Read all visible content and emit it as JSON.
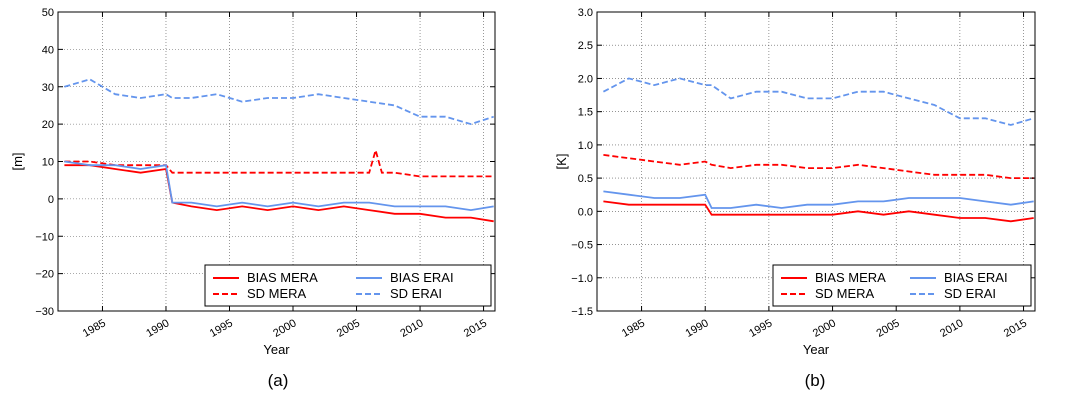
{
  "chart_data": [
    {
      "type": "line",
      "panel_label": "(a)",
      "xlabel": "Year",
      "ylabel": "[m]",
      "xlim": [
        1981.5,
        2015.9
      ],
      "ylim": [
        -30,
        50
      ],
      "yticks": [
        -30,
        -20,
        -10,
        0,
        10,
        20,
        30,
        40,
        50
      ],
      "xticks": [
        1985,
        1990,
        1995,
        2000,
        2005,
        2010,
        2015
      ],
      "grid": true,
      "legend_position": "bottom-right",
      "series": [
        {
          "name": "BIAS MERA",
          "color": "#ff0000",
          "style": "solid",
          "x": [
            1982,
            1984,
            1986,
            1988,
            1990,
            1990.5,
            1992,
            1994,
            1996,
            1998,
            2000,
            2002,
            2004,
            2006,
            2008,
            2010,
            2012,
            2014,
            2015.8
          ],
          "y": [
            9,
            9,
            8,
            7,
            8,
            -1,
            -2,
            -3,
            -2,
            -3,
            -2,
            -3,
            -2,
            -3,
            -4,
            -4,
            -5,
            -5,
            -6
          ]
        },
        {
          "name": "SD MERA",
          "color": "#ff0000",
          "style": "dashed",
          "x": [
            1982,
            1984,
            1986,
            1988,
            1990,
            1990.5,
            1992,
            1994,
            1996,
            1998,
            2000,
            2002,
            2004,
            2006,
            2006.5,
            2007,
            2008,
            2010,
            2012,
            2014,
            2015.8
          ],
          "y": [
            10,
            10,
            9,
            9,
            9,
            7,
            7,
            7,
            7,
            7,
            7,
            7,
            7,
            7,
            13,
            7,
            7,
            6,
            6,
            6,
            6
          ]
        },
        {
          "name": "BIAS ERAI",
          "color": "#6495ed",
          "style": "solid",
          "x": [
            1982,
            1984,
            1986,
            1988,
            1990,
            1990.5,
            1992,
            1994,
            1996,
            1998,
            2000,
            2002,
            2004,
            2006,
            2008,
            2010,
            2012,
            2014,
            2015.8
          ],
          "y": [
            10,
            9,
            9,
            8,
            9,
            -1,
            -1,
            -2,
            -1,
            -2,
            -1,
            -2,
            -1,
            -1,
            -2,
            -2,
            -2,
            -3,
            -2
          ]
        },
        {
          "name": "SD ERAI",
          "color": "#6495ed",
          "style": "dashed",
          "x": [
            1982,
            1984,
            1986,
            1988,
            1990,
            1990.5,
            1992,
            1994,
            1996,
            1998,
            2000,
            2002,
            2004,
            2006,
            2008,
            2010,
            2012,
            2014,
            2015.8
          ],
          "y": [
            30,
            32,
            28,
            27,
            28,
            27,
            27,
            28,
            26,
            27,
            27,
            28,
            27,
            26,
            25,
            22,
            22,
            20,
            22
          ]
        }
      ]
    },
    {
      "type": "line",
      "panel_label": "(b)",
      "xlabel": "Year",
      "ylabel": "[K]",
      "xlim": [
        1981.5,
        2015.9
      ],
      "ylim": [
        -1.5,
        3.0
      ],
      "yticks": [
        -1.5,
        -1.0,
        -0.5,
        0.0,
        0.5,
        1.0,
        1.5,
        2.0,
        2.5,
        3.0
      ],
      "xticks": [
        1985,
        1990,
        1995,
        2000,
        2005,
        2010,
        2015
      ],
      "grid": true,
      "legend_position": "bottom-right",
      "series": [
        {
          "name": "BIAS MERA",
          "color": "#ff0000",
          "style": "solid",
          "x": [
            1982,
            1984,
            1986,
            1988,
            1990,
            1990.5,
            1992,
            1994,
            1996,
            1998,
            2000,
            2002,
            2004,
            2006,
            2008,
            2010,
            2012,
            2014,
            2015.8
          ],
          "y": [
            0.15,
            0.1,
            0.1,
            0.1,
            0.1,
            -0.05,
            -0.05,
            -0.05,
            -0.05,
            -0.05,
            -0.05,
            0.0,
            -0.05,
            0.0,
            -0.05,
            -0.1,
            -0.1,
            -0.15,
            -0.1
          ]
        },
        {
          "name": "SD MERA",
          "color": "#ff0000",
          "style": "dashed",
          "x": [
            1982,
            1984,
            1986,
            1988,
            1990,
            1990.5,
            1992,
            1994,
            1996,
            1998,
            2000,
            2002,
            2004,
            2006,
            2008,
            2010,
            2012,
            2014,
            2015.8
          ],
          "y": [
            0.85,
            0.8,
            0.75,
            0.7,
            0.75,
            0.7,
            0.65,
            0.7,
            0.7,
            0.65,
            0.65,
            0.7,
            0.65,
            0.6,
            0.55,
            0.55,
            0.55,
            0.5,
            0.5
          ]
        },
        {
          "name": "BIAS ERAI",
          "color": "#6495ed",
          "style": "solid",
          "x": [
            1982,
            1984,
            1986,
            1988,
            1990,
            1990.5,
            1992,
            1994,
            1996,
            1998,
            2000,
            2002,
            2004,
            2006,
            2008,
            2010,
            2012,
            2014,
            2015.8
          ],
          "y": [
            0.3,
            0.25,
            0.2,
            0.2,
            0.25,
            0.05,
            0.05,
            0.1,
            0.05,
            0.1,
            0.1,
            0.15,
            0.15,
            0.2,
            0.2,
            0.2,
            0.15,
            0.1,
            0.15
          ]
        },
        {
          "name": "SD ERAI",
          "color": "#6495ed",
          "style": "dashed",
          "x": [
            1982,
            1984,
            1986,
            1988,
            1990,
            1990.5,
            1992,
            1994,
            1996,
            1998,
            2000,
            2002,
            2004,
            2006,
            2008,
            2010,
            2012,
            2014,
            2015.8
          ],
          "y": [
            1.8,
            2.0,
            1.9,
            2.0,
            1.9,
            1.9,
            1.7,
            1.8,
            1.8,
            1.7,
            1.7,
            1.8,
            1.8,
            1.7,
            1.6,
            1.4,
            1.4,
            1.3,
            1.4
          ]
        }
      ]
    }
  ]
}
